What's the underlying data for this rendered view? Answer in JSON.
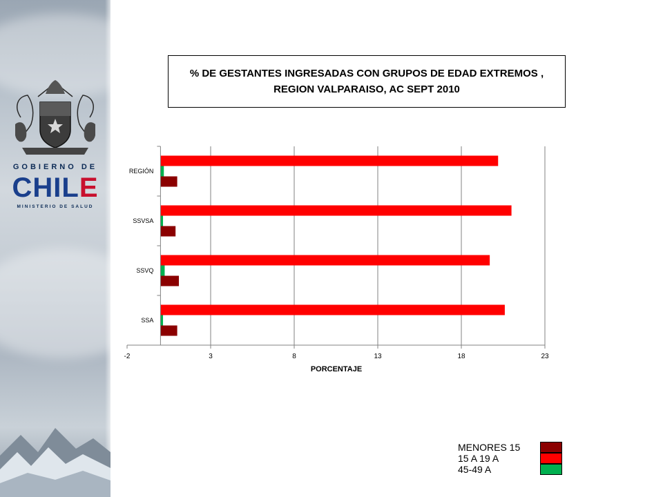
{
  "logo": {
    "line1": "GOBIERNO DE",
    "line2_a": "CHIL",
    "line2_b": "E",
    "line3": "MINISTERIO DE SALUD",
    "icon": "coat-of-arms-icon"
  },
  "colors": {
    "menores_15": "#8b0000",
    "a15_19": "#ff0000",
    "a45_49": "#00b050"
  },
  "chart_data": {
    "type": "bar",
    "orientation": "horizontal",
    "title": "% DE GESTANTES INGRESADAS CON GRUPOS DE EDAD EXTREMOS ,\nREGION VALPARAISO,  AC SEPT 2010",
    "xlabel": "PORCENTAJE",
    "ylabel": "",
    "xlim": [
      -2,
      23
    ],
    "xticks": [
      -2,
      3,
      8,
      13,
      18,
      23
    ],
    "categories": [
      "REGIÓN",
      "SSVSA",
      "SSVQ",
      "SSA"
    ],
    "series": [
      {
        "name": "MENORES 15",
        "color": "#8b0000",
        "values": [
          1.0,
          0.9,
          1.1,
          1.0
        ]
      },
      {
        "name": "15 A 19 A",
        "color": "#ff0000",
        "values": [
          20.2,
          21.0,
          19.7,
          20.6
        ]
      },
      {
        "name": "45-49 A",
        "color": "#00b050",
        "values": [
          0.2,
          0.15,
          0.25,
          0.15
        ]
      }
    ],
    "grid": "vertical",
    "legend_position": "bottom-right"
  },
  "legend": [
    {
      "label": "MENORES 15",
      "color": "#8b0000"
    },
    {
      "label": "15 A 19 A",
      "color": "#ff0000"
    },
    {
      "label": "45-49 A",
      "color": "#00b050"
    }
  ]
}
